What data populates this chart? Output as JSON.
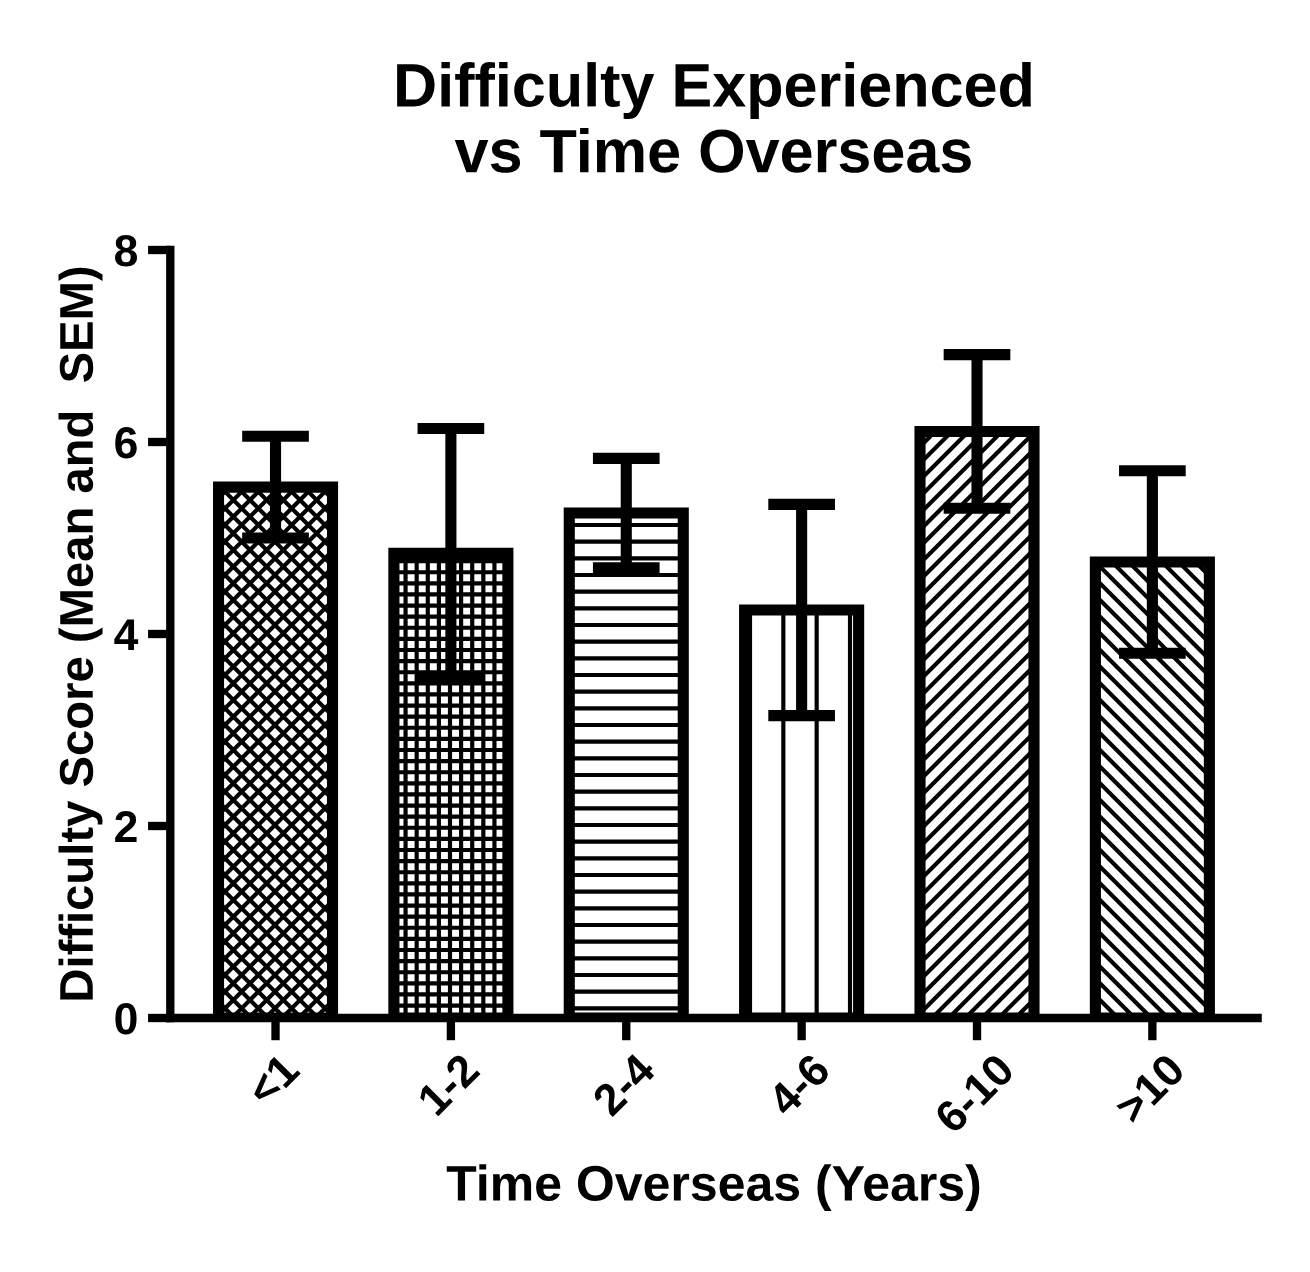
{
  "chart_data": {
    "type": "bar",
    "title": "Difficulty Experienced\nvs Time Overseas",
    "xlabel": "Time Overseas (Years)",
    "ylabel": "Difficulty Score (Mean and  SEM)",
    "categories": [
      "<1",
      "1-2",
      "2-4",
      "4-6",
      "6-10",
      ">10"
    ],
    "values": [
      5.53,
      4.84,
      5.26,
      4.25,
      6.11,
      4.75
    ],
    "errors": [
      0.53,
      1.3,
      0.57,
      1.1,
      0.8,
      0.95
    ],
    "colors": [
      "#000000",
      "#000000",
      "#000000",
      "#000000",
      "#000000",
      "#000000"
    ],
    "ylim": [
      0,
      8
    ],
    "yticks": [
      0,
      2,
      4,
      6,
      8
    ],
    "grid": false,
    "legend": false
  }
}
